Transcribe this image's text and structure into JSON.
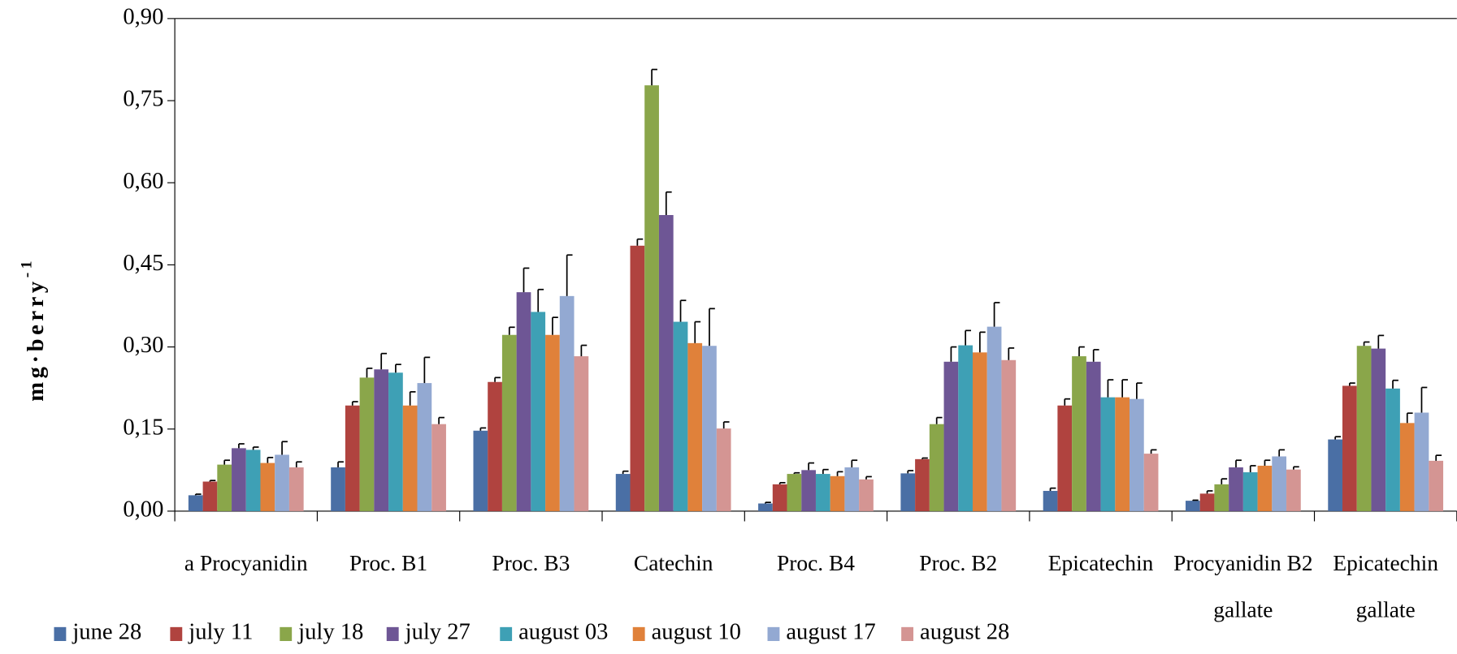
{
  "chart_data": {
    "type": "bar",
    "y_label": "mg·berry",
    "y_label_sup": "-1",
    "categories": [
      "a Procyanidin",
      "Proc. B1",
      "Proc. B3",
      "Catechin",
      "Proc. B4",
      "Proc. B2",
      "Epicatechin",
      "Procyanidin B2 gallate",
      "Epicatechin gallate"
    ],
    "series": [
      {
        "name": "june 28",
        "color": "#4a6fa5",
        "values": [
          0.029,
          0.08,
          0.147,
          0.068,
          0.014,
          0.069,
          0.037,
          0.019,
          0.131
        ],
        "errors": [
          0.002,
          0.01,
          0.005,
          0.005,
          0.002,
          0.005,
          0.005,
          0.001,
          0.005
        ]
      },
      {
        "name": "july 11",
        "color": "#b0433f",
        "values": [
          0.054,
          0.193,
          0.236,
          0.485,
          0.049,
          0.095,
          0.193,
          0.032,
          0.229
        ],
        "errors": [
          0.002,
          0.007,
          0.008,
          0.012,
          0.003,
          0.002,
          0.012,
          0.005,
          0.005
        ]
      },
      {
        "name": "july 18",
        "color": "#8aa64a",
        "values": [
          0.085,
          0.244,
          0.322,
          0.778,
          0.068,
          0.159,
          0.283,
          0.049,
          0.302
        ],
        "errors": [
          0.008,
          0.017,
          0.014,
          0.029,
          0.002,
          0.012,
          0.017,
          0.01,
          0.007
        ]
      },
      {
        "name": "july 27",
        "color": "#6e5695",
        "values": [
          0.115,
          0.259,
          0.4,
          0.541,
          0.075,
          0.273,
          0.273,
          0.08,
          0.297
        ],
        "errors": [
          0.008,
          0.029,
          0.044,
          0.042,
          0.013,
          0.027,
          0.022,
          0.013,
          0.024
        ]
      },
      {
        "name": "august 03",
        "color": "#3ea0b5",
        "values": [
          0.112,
          0.253,
          0.364,
          0.346,
          0.068,
          0.303,
          0.208,
          0.071,
          0.224
        ],
        "errors": [
          0.005,
          0.015,
          0.041,
          0.039,
          0.008,
          0.027,
          0.032,
          0.012,
          0.015
        ]
      },
      {
        "name": "august 10",
        "color": "#e0813a",
        "values": [
          0.088,
          0.193,
          0.322,
          0.307,
          0.064,
          0.29,
          0.208,
          0.083,
          0.161
        ],
        "errors": [
          0.01,
          0.025,
          0.032,
          0.039,
          0.008,
          0.037,
          0.032,
          0.01,
          0.018
        ]
      },
      {
        "name": "august 17",
        "color": "#93a9d2",
        "values": [
          0.103,
          0.234,
          0.393,
          0.302,
          0.08,
          0.337,
          0.205,
          0.1,
          0.18
        ],
        "errors": [
          0.024,
          0.047,
          0.075,
          0.068,
          0.013,
          0.044,
          0.029,
          0.012,
          0.046
        ]
      },
      {
        "name": "august 28",
        "color": "#d49593",
        "values": [
          0.08,
          0.159,
          0.283,
          0.151,
          0.058,
          0.276,
          0.105,
          0.076,
          0.092
        ],
        "errors": [
          0.01,
          0.012,
          0.02,
          0.012,
          0.005,
          0.022,
          0.007,
          0.005,
          0.01
        ]
      }
    ],
    "ylim": [
      0,
      0.9
    ],
    "yticks": [
      {
        "value": 0,
        "label": "0,00"
      },
      {
        "value": 0.15,
        "label": "0,15"
      },
      {
        "value": 0.3,
        "label": "0,30"
      },
      {
        "value": 0.45,
        "label": "0,45"
      },
      {
        "value": 0.6,
        "label": "0,60"
      },
      {
        "value": 0.75,
        "label": "0,75"
      },
      {
        "value": 0.9,
        "label": "0,90"
      }
    ],
    "grid": false,
    "legend": "bottom"
  }
}
